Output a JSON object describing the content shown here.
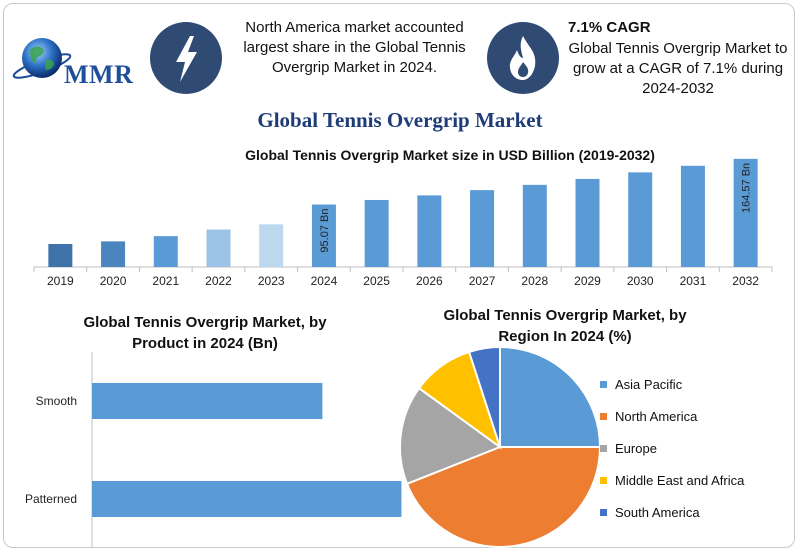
{
  "header": {
    "logo_text": "MMR",
    "callout_left": "North America market accounted largest share in the Global Tennis Overgrip Market in 2024.",
    "callout_right_title": "7.1% CAGR",
    "callout_right_body": "Global Tennis Overgrip Market to grow at a CAGR of 7.1% during 2024-2032",
    "icon_left": "lightning-icon",
    "icon_right": "flame-icon",
    "icon_color": "#2f4a73"
  },
  "main_title": "Global Tennis Overgrip Market",
  "chart_data": [
    {
      "type": "bar",
      "title": "Global Tennis Overgrip Market size in USD Billion (2019-2032)",
      "categories": [
        "2019",
        "2020",
        "2021",
        "2022",
        "2023",
        "2024",
        "2025",
        "2026",
        "2027",
        "2028",
        "2029",
        "2030",
        "2031",
        "2032"
      ],
      "values": [
        35,
        39,
        47,
        57,
        65,
        95.07,
        102,
        109,
        117,
        125,
        134,
        144,
        154,
        164.57
      ],
      "colors": [
        "#3f72a8",
        "#4a85c0",
        "#5b9bd5",
        "#9dc3e6",
        "#bdd7ee",
        "#5b9bd5",
        "#5b9bd5",
        "#5b9bd5",
        "#5b9bd5",
        "#5b9bd5",
        "#5b9bd5",
        "#5b9bd5",
        "#5b9bd5",
        "#5b9bd5"
      ],
      "data_labels": [
        {
          "category": "2024",
          "text": "95.07 Bn"
        },
        {
          "category": "2032",
          "text": "164.57 Bn"
        }
      ],
      "ylim": [
        0,
        175
      ]
    },
    {
      "type": "bar",
      "orientation": "horizontal",
      "title": "Global Tennis Overgrip Market, by Product in 2024 (Bn)",
      "categories": [
        "Smooth",
        "Patterned"
      ],
      "values": [
        35,
        47
      ],
      "xlim": [
        0,
        60
      ],
      "color": "#5b9bd5"
    },
    {
      "type": "pie",
      "title": "Global Tennis Overgrip Market, by Region In 2024 (%)",
      "labels": [
        "Asia Pacific",
        "North America",
        "Europe",
        "Middle East and Africa",
        "South America"
      ],
      "values": [
        25,
        44,
        16,
        10,
        5
      ],
      "colors": [
        "#5b9bd5",
        "#ed7d31",
        "#a5a5a5",
        "#ffc000",
        "#4472c4"
      ],
      "legend_position": "right"
    }
  ]
}
